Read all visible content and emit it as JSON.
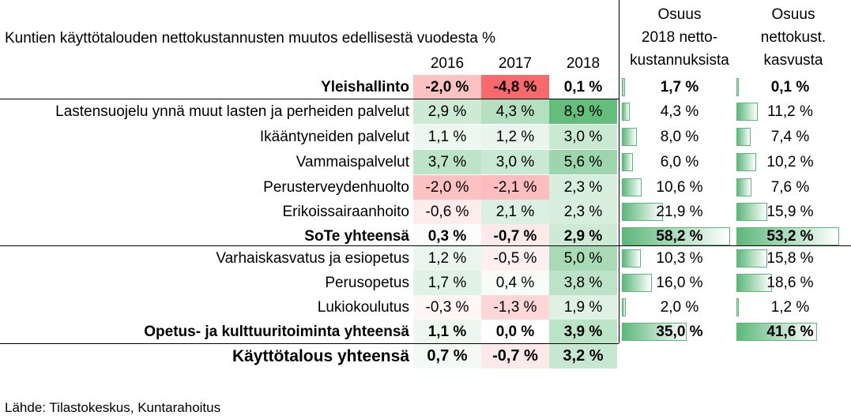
{
  "chart_data": {
    "type": "table",
    "title": "Kuntien käyttötalouden nettokustannusten muutos edellisestä vuodesta %",
    "year_columns": [
      "2016",
      "2017",
      "2018"
    ],
    "share_headers": [
      [
        "Osuus",
        "2018 netto-",
        "kustannuksista"
      ],
      [
        "Osuus",
        "nettokust.",
        "kasvusta"
      ]
    ],
    "rows": [
      {
        "label": "Yleishallinto",
        "total": true,
        "values": [
          -2.0,
          -4.8,
          0.1
        ],
        "share_cost": 1.7,
        "share_growth": 0.1
      },
      {
        "label": "Lastensuojelu ynnä muut lasten ja perheiden palvelut",
        "total": false,
        "values": [
          2.9,
          4.3,
          8.9
        ],
        "share_cost": 4.3,
        "share_growth": 11.2
      },
      {
        "label": "Ikääntyneiden palvelut",
        "total": false,
        "values": [
          1.1,
          1.2,
          3.0
        ],
        "share_cost": 8.0,
        "share_growth": 7.4
      },
      {
        "label": "Vammaispalvelut",
        "total": false,
        "values": [
          3.7,
          3.0,
          5.6
        ],
        "share_cost": 6.0,
        "share_growth": 10.2
      },
      {
        "label": "Perusterveydenhuolto",
        "total": false,
        "values": [
          -2.0,
          -2.1,
          2.3
        ],
        "share_cost": 10.6,
        "share_growth": 7.6
      },
      {
        "label": "Erikoissairaanhoito",
        "total": false,
        "values": [
          -0.6,
          2.1,
          2.3
        ],
        "share_cost": 21.9,
        "share_growth": 15.9
      },
      {
        "label": "SoTe yhteensä",
        "total": true,
        "values": [
          0.3,
          -0.7,
          2.9
        ],
        "share_cost": 58.2,
        "share_growth": 53.2
      },
      {
        "label": "Varhaiskasvatus ja esiopetus",
        "total": false,
        "values": [
          1.2,
          -0.5,
          5.0
        ],
        "share_cost": 10.3,
        "share_growth": 15.8
      },
      {
        "label": "Perusopetus",
        "total": false,
        "values": [
          1.7,
          0.4,
          3.8
        ],
        "share_cost": 16.0,
        "share_growth": 18.6
      },
      {
        "label": "Lukiokoulutus",
        "total": false,
        "values": [
          -0.3,
          -1.3,
          1.9
        ],
        "share_cost": 2.0,
        "share_growth": 1.2
      },
      {
        "label": "Opetus- ja kulttuuritoiminta yhteensä",
        "total": true,
        "values": [
          1.1,
          0.0,
          3.9
        ],
        "share_cost": 35.0,
        "share_growth": 41.6
      },
      {
        "label": "Käyttötalous yhteensä",
        "total": true,
        "values": [
          0.7,
          -0.7,
          3.2
        ],
        "share_cost": null,
        "share_growth": null
      }
    ],
    "colors": {
      "positive_max": "#63be7b",
      "negative_max": "#f8696b",
      "neutral": "#ffffff",
      "bar": "#5cb87a"
    }
  },
  "source": "Lähde: Tilastokeskus, Kuntarahoitus"
}
